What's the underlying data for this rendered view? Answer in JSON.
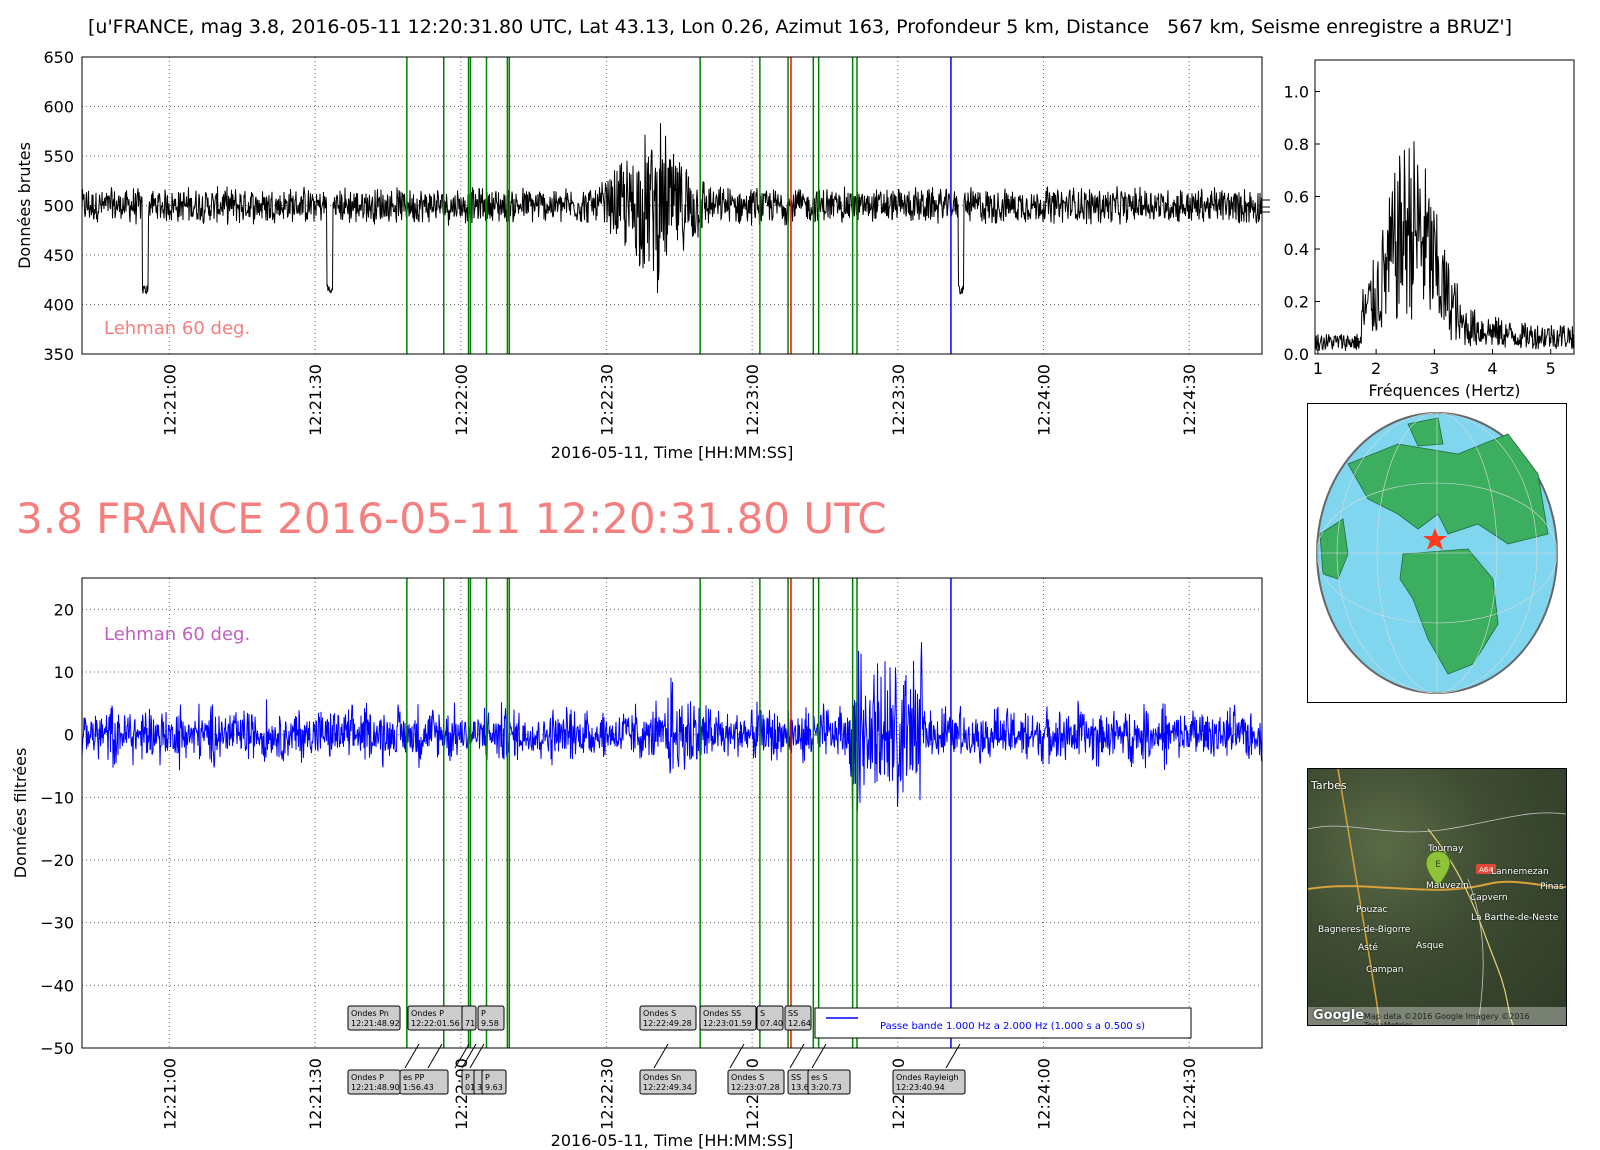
{
  "page_title": "[u'FRANCE, mag 3.8, 2016-05-11 12:20:31.80 UTC, Lat 43.13, Lon 0.26, Azimut 163, Profondeur 5 km, Distance   567 km, Seisme enregistre a BRUZ']",
  "big_title": "3.8 FRANCE 2016-05-11 12:20:31.80 UTC",
  "colors": {
    "raw_trace": "#000000",
    "filtered_trace": "#0000ff",
    "phase_line": "#008000",
    "red_line": "#ff0000",
    "blue_line": "#0000ff",
    "big_title": "#f57f7f",
    "lehman_raw": "#f57f7f",
    "lehman_filtered": "#c25fc2",
    "ocean": "#7fd6ee",
    "land": "#3cae60"
  },
  "chart_data": [
    {
      "type": "line",
      "name": "raw",
      "ylabel": "Données brutes",
      "xlabel": "2016-05-11, Time [HH:MM:SS]",
      "ylim": [
        350,
        650
      ],
      "yticks": [
        "350",
        "400",
        "450",
        "500",
        "550",
        "600",
        "650"
      ],
      "xlim": [
        "12:20:42",
        "12:24:45"
      ],
      "xticks": [
        "12:21:00",
        "12:21:30",
        "12:22:00",
        "12:22:30",
        "12:23:00",
        "12:23:30",
        "12:24:00",
        "12:24:30"
      ],
      "grid": true,
      "annotation": "Lehman 60 deg.",
      "trace": {
        "baseline": 500,
        "noise_amplitude": 18,
        "burst_time": "12:22:40",
        "burst_peak": 610,
        "burst_trough": 395,
        "spike_times": [
          "12:20:55",
          "12:21:33",
          "12:23:43"
        ]
      },
      "phase_lines": {
        "green": [
          "12:21:48.9",
          "12:21:56.5",
          "12:22:01.6",
          "12:22:02.0",
          "12:22:05.3",
          "12:22:09.6",
          "12:22:10.0",
          "12:22:49.3",
          "12:23:01.6",
          "12:23:07.4",
          "12:23:12.6",
          "12:23:13.7",
          "12:23:20.7",
          "12:23:21.6"
        ],
        "red": [
          "12:23:08.0"
        ],
        "blue": [
          "12:23:40.94"
        ]
      }
    },
    {
      "type": "line",
      "name": "filtered",
      "ylabel": "Données filtrées",
      "xlabel": "2016-05-11, Time [HH:MM:SS]",
      "ylim": [
        -50,
        25
      ],
      "yticks": [
        "−50",
        "−40",
        "−30",
        "−20",
        "−10",
        "0",
        "10",
        "20"
      ],
      "xticks": [
        "12:21:00",
        "12:21:30",
        "12:22:00",
        "12:22:30",
        "12:23:00",
        "12:23:30",
        "12:24:00",
        "12:24:30"
      ],
      "grid": true,
      "annotation": "Lehman 60 deg.",
      "legend": {
        "entry": "Passe bande 1.000 Hz a 2.000 Hz (1.000 s a 0.500 s)",
        "placement": "lower-center-right"
      },
      "trace": {
        "noise_amplitude": 5,
        "burst_window": [
          "12:23:20",
          "12:23:35"
        ],
        "burst_peak": 15
      },
      "phase_labels_top": [
        {
          "text": [
            "Ondes Pn",
            "12:21:48.92"
          ]
        },
        {
          "text": [
            "Ondes P",
            "12:22:01.56"
          ]
        },
        {
          "text": [
            "",
            "71"
          ]
        },
        {
          "text": [
            "P",
            "9.58"
          ]
        },
        {
          "text": [
            "Ondes S",
            "12:22:49.28"
          ]
        },
        {
          "text": [
            "Ondes SS",
            "12:23:01.59"
          ]
        },
        {
          "text": [
            "S",
            "07.40"
          ]
        },
        {
          "text": [
            "SS",
            "12.64"
          ]
        }
      ],
      "phase_labels_bottom": [
        {
          "text": [
            "Ondes P",
            "12:21:48.90"
          ]
        },
        {
          "text": [
            "es PP",
            "1:56.43"
          ]
        },
        {
          "text": [
            "P",
            "01.62"
          ]
        },
        {
          "text": [
            "",
            "32"
          ]
        },
        {
          "text": [
            "P",
            "9.63"
          ]
        },
        {
          "text": [
            "Ondes Sn",
            "12:22:49.34"
          ]
        },
        {
          "text": [
            "Ondes S",
            "12:23:07.28"
          ]
        },
        {
          "text": [
            "SS",
            "13.66"
          ]
        },
        {
          "text": [
            "es S",
            "3:20.73"
          ]
        },
        {
          "text": [
            "Ondes Rayleigh",
            "12:23:40.94"
          ]
        }
      ]
    },
    {
      "type": "line",
      "name": "spectrum",
      "xlabel": "Fréquences (Hertz)",
      "xlim": [
        0.95,
        5.4
      ],
      "ylim": [
        0,
        1.12
      ],
      "xticks": [
        "1",
        "2",
        "3",
        "4",
        "5"
      ],
      "yticks": [
        "0.0",
        "0.2",
        "0.4",
        "0.6",
        "0.8",
        "1.0"
      ],
      "trace": {
        "base_level": 0.08,
        "peak_freq": 2.6,
        "peak_value": 0.84,
        "shoulder_level": 0.2
      }
    }
  ],
  "globe": {
    "star_label": "epicenter-star"
  },
  "map": {
    "towns": [
      "Tarbes",
      "Tournay",
      "Lannemezan",
      "Pinas",
      "Mauvezin",
      "Capvern",
      "Pouzac",
      "La Barthe-de-Neste",
      "Bagneres-de-Bigorre",
      "Asté",
      "Asque",
      "Campan"
    ],
    "road": "A64",
    "marker": "E",
    "footer_brand": "Google",
    "footer_text": "Map data ©2016 Google  Imagery ©2016 TerraMetrics"
  }
}
